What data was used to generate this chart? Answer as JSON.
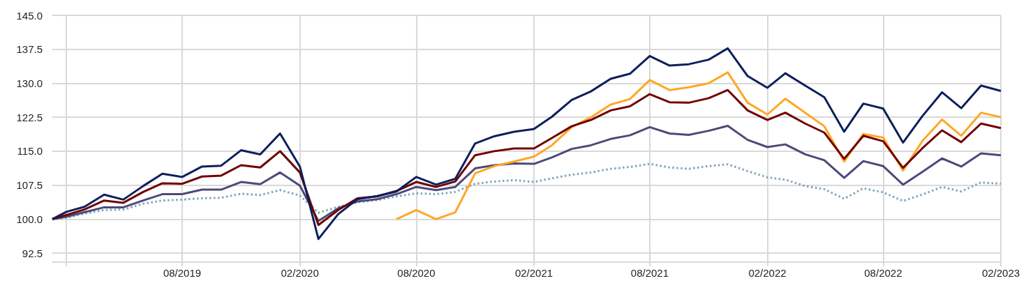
{
  "chart_data": {
    "type": "line",
    "x": [
      "2019-01-10",
      "2019-02",
      "2019-03",
      "2019-04",
      "2019-05",
      "2019-06",
      "2019-07",
      "2019-08",
      "2019-09",
      "2019-10",
      "2019-11",
      "2019-12",
      "2020-01",
      "2020-02",
      "2020-03",
      "2020-04",
      "2020-05",
      "2020-06",
      "2020-07",
      "2020-08",
      "2020-09",
      "2020-10",
      "2020-11",
      "2020-12",
      "2021-01",
      "2021-02",
      "2021-03",
      "2021-04",
      "2021-05",
      "2021-06",
      "2021-07",
      "2021-08",
      "2021-09",
      "2021-10",
      "2021-11",
      "2021-12",
      "2022-01",
      "2022-02",
      "2022-03",
      "2022-04",
      "2022-05",
      "2022-06",
      "2022-07",
      "2022-08",
      "2022-09",
      "2022-10",
      "2022-11",
      "2022-12",
      "2023-01",
      "2023-02"
    ],
    "series": [
      {
        "color": "#7fa6b7",
        "line_style": "dotted",
        "values": [
          100,
          100.3,
          101.2,
          102.0,
          102.1,
          103.4,
          104.1,
          104.3,
          104.6,
          104.7,
          105.6,
          105.3,
          106.4,
          105.2,
          101.4,
          102.7,
          103.7,
          104.2,
          105.0,
          105.7,
          105.5,
          106.0,
          107.8,
          108.3,
          108.6,
          108.2,
          109.0,
          109.8,
          110.3,
          111.1,
          111.5,
          112.2,
          111.4,
          111.1,
          111.7,
          112.1,
          110.6,
          109.2,
          108.7,
          107.3,
          106.6,
          104.5,
          106.8,
          105.9,
          104.0,
          105.4,
          107.1,
          106.1,
          108.1,
          107.8
        ]
      },
      {
        "color": "#4b4a7a",
        "values": [
          100,
          100.5,
          101.5,
          102.6,
          102.6,
          104.1,
          105.5,
          105.5,
          106.5,
          106.5,
          108.2,
          107.7,
          110.3,
          107.4,
          99.6,
          102.4,
          103.9,
          104.4,
          105.5,
          107.1,
          106.4,
          107.1,
          111.2,
          111.9,
          112.3,
          112.2,
          113.6,
          115.5,
          116.3,
          117.7,
          118.5,
          120.3,
          118.9,
          118.6,
          119.5,
          120.6,
          117.5,
          115.9,
          116.5,
          114.3,
          113.0,
          109.1,
          112.8,
          111.7,
          107.6,
          110.4,
          113.4,
          111.6,
          114.5,
          114.1
        ]
      },
      {
        "color": "#ffa726",
        "values": [
          null,
          null,
          null,
          null,
          null,
          null,
          null,
          null,
          null,
          null,
          null,
          null,
          null,
          null,
          null,
          null,
          null,
          null,
          100.0,
          102.0,
          100.0,
          101.5,
          110.1,
          111.7,
          112.7,
          113.8,
          116.3,
          120.3,
          122.5,
          125.3,
          126.5,
          130.7,
          128.5,
          129.1,
          130.0,
          132.4,
          125.7,
          123.1,
          126.6,
          123.5,
          120.5,
          112.7,
          118.8,
          118.0,
          110.7,
          117.2,
          122.0,
          118.4,
          123.5,
          122.5
        ]
      },
      {
        "color": "#700000",
        "values": [
          100,
          100.9,
          102.1,
          104.1,
          103.6,
          106.0,
          107.9,
          107.8,
          109.4,
          109.6,
          111.9,
          111.4,
          115.0,
          110.3,
          98.7,
          102.0,
          104.6,
          105.0,
          106.2,
          108.2,
          107.1,
          108.3,
          114.1,
          115.0,
          115.6,
          115.6,
          117.9,
          120.5,
          121.9,
          124.0,
          124.9,
          127.6,
          125.8,
          125.7,
          126.7,
          128.5,
          124.0,
          121.9,
          123.5,
          121.1,
          119.1,
          113.3,
          118.4,
          117.2,
          111.3,
          115.6,
          119.6,
          117.0,
          121.1,
          120.1
        ]
      },
      {
        "color": "#0d1f5c",
        "values": [
          100,
          101.6,
          102.7,
          105.4,
          104.3,
          107.3,
          110.0,
          109.3,
          111.6,
          111.8,
          115.2,
          114.3,
          118.9,
          111.6,
          95.6,
          101.1,
          104.4,
          105.1,
          106.1,
          109.3,
          107.6,
          108.9,
          116.7,
          118.3,
          119.3,
          119.9,
          122.6,
          126.3,
          128.2,
          131.0,
          132.1,
          136.0,
          133.9,
          134.2,
          135.2,
          137.7,
          131.6,
          129.0,
          132.2,
          129.5,
          126.9,
          119.3,
          125.5,
          124.4,
          116.9,
          122.7,
          128.0,
          124.5,
          129.5,
          128.3
        ]
      }
    ],
    "xlim": [
      "2019-01-10",
      "2023-02"
    ],
    "xticks": [
      {
        "value": "2019-02",
        "label": null
      },
      {
        "value": "2019-08",
        "label": "08/2019"
      },
      {
        "value": "2020-02",
        "label": "02/2020"
      },
      {
        "value": "2020-08",
        "label": "08/2020"
      },
      {
        "value": "2021-02",
        "label": "02/2021"
      },
      {
        "value": "2021-08",
        "label": "08/2021"
      },
      {
        "value": "2022-02",
        "label": "02/2022"
      },
      {
        "value": "2022-08",
        "label": "08/2022"
      },
      {
        "value": "2023-02",
        "label": "02/2023"
      }
    ],
    "ylim": [
      90.5,
      145
    ],
    "yticks": [
      {
        "value": 92.5,
        "label": "92.5"
      },
      {
        "value": 100,
        "label": "100.0"
      },
      {
        "value": 107.5,
        "label": "107.5"
      },
      {
        "value": 115,
        "label": "115.0"
      },
      {
        "value": 122.5,
        "label": "122.5"
      },
      {
        "value": 130,
        "label": "130.0"
      },
      {
        "value": 137.5,
        "label": "137.5"
      },
      {
        "value": 145,
        "label": "145.0"
      }
    ],
    "grid": true,
    "marker": "none",
    "line_style": "solid"
  }
}
